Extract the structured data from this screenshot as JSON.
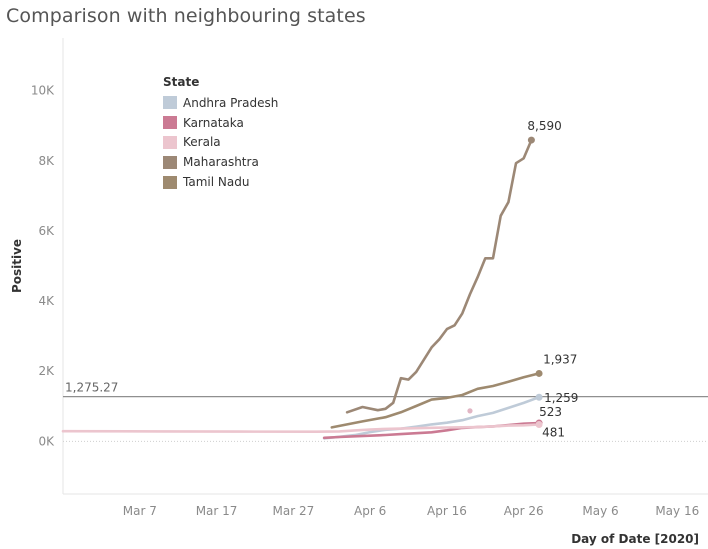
{
  "title": "Comparison with neighbouring states",
  "legend": {
    "title": "State",
    "items": [
      {
        "label": "Andhra Pradesh",
        "color": "#bfcbd8"
      },
      {
        "label": "Karnataka",
        "color": "#cb7a93"
      },
      {
        "label": "Kerala",
        "color": "#ecc5ce"
      },
      {
        "label": "Maharashtra",
        "color": "#9c8876"
      },
      {
        "label": "Tamil Nadu",
        "color": "#9e8a6f"
      }
    ]
  },
  "chart_data": {
    "type": "line",
    "title": "Comparison with neighbouring states",
    "xlabel": "Day of Date [2020]",
    "ylabel": "Positive",
    "x_ticks": [
      "Mar 7",
      "Mar 17",
      "Mar 27",
      "Apr 6",
      "Apr 16",
      "Apr 26",
      "May 6",
      "May 16"
    ],
    "x_range": [
      "2020-02-26",
      "2020-05-20"
    ],
    "y_ticks": [
      "0K",
      "2K",
      "4K",
      "6K",
      "8K",
      "10K"
    ],
    "ylim": [
      -1500,
      11500
    ],
    "grid": false,
    "legend_position": "top-left",
    "reference_line": {
      "label": "1,275.27",
      "value": 1275.27,
      "color": "#8f8f8f"
    },
    "series": [
      {
        "name": "Andhra Pradesh",
        "color": "#bfcbd8",
        "points": [
          [
            "2020-03-31",
            87
          ],
          [
            "2020-04-02",
            132
          ],
          [
            "2020-04-04",
            180
          ],
          [
            "2020-04-06",
            266
          ],
          [
            "2020-04-08",
            329
          ],
          [
            "2020-04-10",
            363
          ],
          [
            "2020-04-12",
            420
          ],
          [
            "2020-04-14",
            483
          ],
          [
            "2020-04-16",
            534
          ],
          [
            "2020-04-18",
            603
          ],
          [
            "2020-04-20",
            722
          ],
          [
            "2020-04-22",
            813
          ],
          [
            "2020-04-24",
            955
          ],
          [
            "2020-04-26",
            1097
          ],
          [
            "2020-04-28",
            1259
          ]
        ],
        "end_label": "1,259"
      },
      {
        "name": "Karnataka",
        "color": "#cb7a93",
        "points": [
          [
            "2020-03-31",
            101
          ],
          [
            "2020-04-02",
            124
          ],
          [
            "2020-04-04",
            144
          ],
          [
            "2020-04-06",
            163
          ],
          [
            "2020-04-08",
            181
          ],
          [
            "2020-04-10",
            207
          ],
          [
            "2020-04-12",
            232
          ],
          [
            "2020-04-14",
            260
          ],
          [
            "2020-04-16",
            315
          ],
          [
            "2020-04-18",
            384
          ],
          [
            "2020-04-20",
            408
          ],
          [
            "2020-04-22",
            427
          ],
          [
            "2020-04-24",
            463
          ],
          [
            "2020-04-26",
            503
          ],
          [
            "2020-04-28",
            523
          ]
        ],
        "end_label": "523"
      },
      {
        "name": "Kerala",
        "color": "#ecc5ce",
        "points": [
          [
            "2020-02-26",
            290
          ],
          [
            "2020-03-10",
            285
          ],
          [
            "2020-03-20",
            280
          ],
          [
            "2020-03-30",
            275
          ],
          [
            "2020-04-02",
            286
          ],
          [
            "2020-04-04",
            314
          ],
          [
            "2020-04-06",
            336
          ],
          [
            "2020-04-08",
            357
          ],
          [
            "2020-04-10",
            364
          ],
          [
            "2020-04-12",
            375
          ],
          [
            "2020-04-14",
            387
          ],
          [
            "2020-04-16",
            395
          ],
          [
            "2020-04-18",
            402
          ],
          [
            "2020-04-20",
            408
          ],
          [
            "2020-04-22",
            427
          ],
          [
            "2020-04-24",
            450
          ],
          [
            "2020-04-26",
            458
          ],
          [
            "2020-04-28",
            481
          ]
        ],
        "end_label": "481"
      },
      {
        "name": "Maharashtra",
        "color": "#9c8876",
        "points": [
          [
            "2020-04-03",
            830
          ],
          [
            "2020-04-05",
            980
          ],
          [
            "2020-04-07",
            890
          ],
          [
            "2020-04-08",
            930
          ],
          [
            "2020-04-09",
            1100
          ],
          [
            "2020-04-10",
            1800
          ],
          [
            "2020-04-11",
            1760
          ],
          [
            "2020-04-12",
            1980
          ],
          [
            "2020-04-13",
            2330
          ],
          [
            "2020-04-14",
            2680
          ],
          [
            "2020-04-15",
            2910
          ],
          [
            "2020-04-16",
            3200
          ],
          [
            "2020-04-17",
            3310
          ],
          [
            "2020-04-18",
            3650
          ],
          [
            "2020-04-19",
            4200
          ],
          [
            "2020-04-20",
            4680
          ],
          [
            "2020-04-21",
            5220
          ],
          [
            "2020-04-22",
            5220
          ],
          [
            "2020-04-23",
            6430
          ],
          [
            "2020-04-24",
            6820
          ],
          [
            "2020-04-25",
            7930
          ],
          [
            "2020-04-26",
            8070
          ],
          [
            "2020-04-27",
            8590
          ]
        ],
        "end_label": "8,590"
      },
      {
        "name": "Tamil Nadu",
        "color": "#9e8a6f",
        "points": [
          [
            "2020-04-01",
            400
          ],
          [
            "2020-04-05",
            570
          ],
          [
            "2020-04-08",
            690
          ],
          [
            "2020-04-10",
            830
          ],
          [
            "2020-04-12",
            1010
          ],
          [
            "2020-04-14",
            1190
          ],
          [
            "2020-04-16",
            1240
          ],
          [
            "2020-04-18",
            1323
          ],
          [
            "2020-04-20",
            1500
          ],
          [
            "2020-04-22",
            1580
          ],
          [
            "2020-04-24",
            1700
          ],
          [
            "2020-04-26",
            1830
          ],
          [
            "2020-04-28",
            1937
          ]
        ],
        "end_label": "1,937"
      }
    ],
    "scatter_points": [
      {
        "date": "2020-04-19",
        "value": 870,
        "color": "#cb7a93"
      }
    ]
  }
}
